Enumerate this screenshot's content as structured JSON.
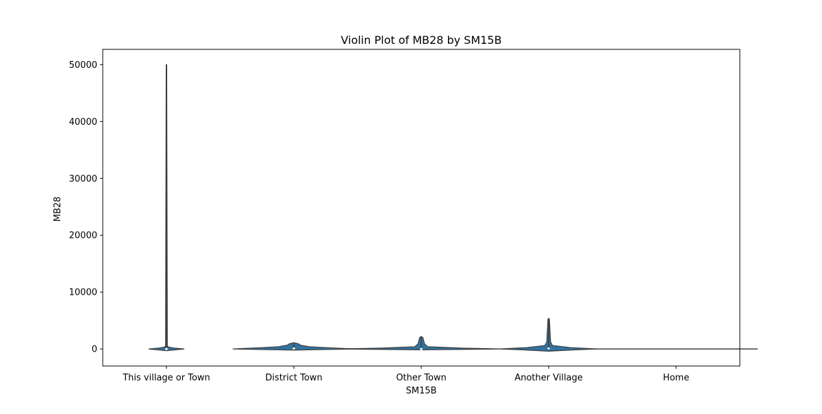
{
  "chart_data": {
    "type": "violin",
    "title": "Violin Plot of MB28 by SM15B",
    "xlabel": "SM15B",
    "ylabel": "MB28",
    "ylim": [
      -3000,
      52700
    ],
    "yticks": [
      0,
      10000,
      20000,
      30000,
      40000,
      50000
    ],
    "ytick_labels": [
      "0",
      "10000",
      "20000",
      "30000",
      "40000",
      "50000"
    ],
    "categories": [
      "This village or Town",
      "District Town",
      "Other Town",
      "Another Village",
      "Home"
    ],
    "violins": [
      {
        "category": "This village or Town",
        "min": 0,
        "q1": 0,
        "median": 0,
        "q3": 200,
        "max": 50000,
        "density": [
          [
            -300,
            0.0
          ],
          [
            -100,
            0.7
          ],
          [
            0,
            1.0
          ],
          [
            150,
            0.45
          ],
          [
            300,
            0.15
          ],
          [
            500,
            0.05
          ],
          [
            50000,
            0.015
          ]
        ],
        "width_scale": 0.35
      },
      {
        "category": "District Town",
        "min": 0,
        "q1": 0,
        "median": 100,
        "q3": 300,
        "max": 1000,
        "density": [
          [
            -200,
            0.0
          ],
          [
            0,
            1.0
          ],
          [
            200,
            0.6
          ],
          [
            400,
            0.25
          ],
          [
            700,
            0.1
          ],
          [
            900,
            0.08
          ],
          [
            1100,
            0.0
          ]
        ],
        "width_scale": 1.2
      },
      {
        "category": "Other Town",
        "min": 0,
        "q1": 0,
        "median": 0,
        "q3": 100,
        "max": 2000,
        "density": [
          [
            -150,
            0.0
          ],
          [
            0,
            1.0
          ],
          [
            150,
            0.5
          ],
          [
            400,
            0.08
          ],
          [
            900,
            0.04
          ],
          [
            2000,
            0.02
          ],
          [
            2200,
            0.0
          ]
        ],
        "width_scale": 1.6
      },
      {
        "category": "Another Village",
        "min": 0,
        "q1": 0,
        "median": 100,
        "q3": 300,
        "max": 5200,
        "density": [
          [
            -400,
            0.0
          ],
          [
            -150,
            0.55
          ],
          [
            0,
            1.0
          ],
          [
            250,
            0.45
          ],
          [
            600,
            0.08
          ],
          [
            1200,
            0.04
          ],
          [
            5200,
            0.015
          ],
          [
            5400,
            0.0
          ]
        ],
        "width_scale": 0.95
      },
      {
        "category": "Home",
        "min": 0,
        "q1": 0,
        "median": 0,
        "q3": 0,
        "max": 0,
        "density": [
          [
            0,
            1.0
          ]
        ],
        "width_scale": 1.6
      }
    ],
    "colors": {
      "violin_fill": "#3274a1",
      "violin_edge": "#3d3d3d",
      "axes": "#000000"
    }
  }
}
